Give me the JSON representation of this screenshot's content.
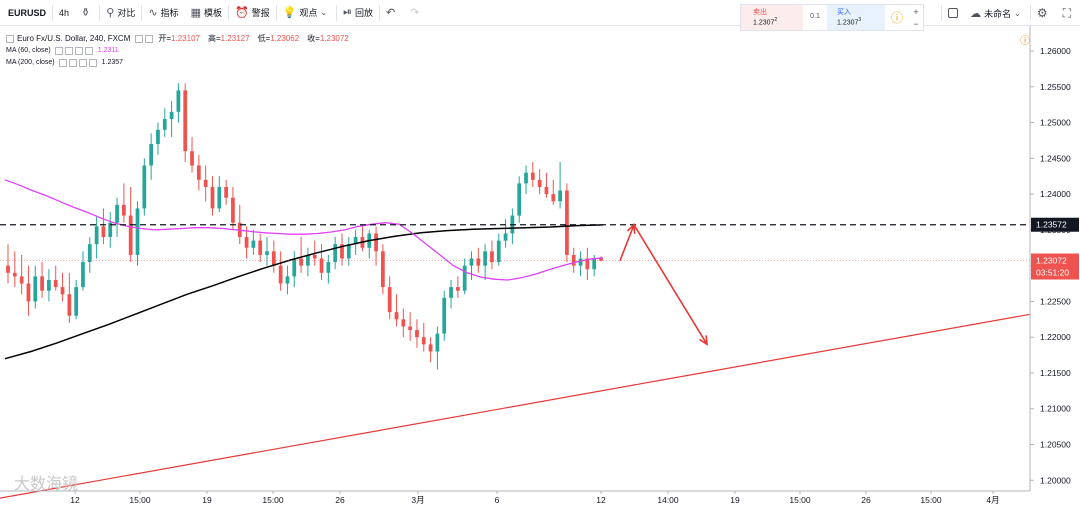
{
  "toolbar": {
    "symbol": "EURUSD",
    "interval": "4h",
    "items": [
      {
        "icon": "candles-icon",
        "label": ""
      },
      {
        "icon": "compare-icon",
        "label": "对比"
      },
      {
        "icon": "indicators-icon",
        "label": "指标"
      },
      {
        "icon": "templates-icon",
        "label": "模板"
      },
      {
        "icon": "alert-icon",
        "label": "警报"
      },
      {
        "icon": "ideas-icon",
        "label": "观点"
      },
      {
        "icon": "replay-icon",
        "label": "回放"
      }
    ],
    "undo_icon": "undo-icon",
    "redo_icon": "redo-icon",
    "layout_name": "未命名",
    "settings_icon": "gear-icon",
    "fullscreen_icon": "fullscreen-icon"
  },
  "trade": {
    "sell_label": "卖出",
    "sell_price": "1.2307",
    "sell_sup": "2",
    "spread": "0.1",
    "buy_label": "买入",
    "buy_price": "1.2307",
    "buy_sup": "3"
  },
  "legend": {
    "title": "Euro Fx/U.S. Dollar, 240, FXCM",
    "open_label": "开=",
    "open": "1.23107",
    "high_label": "高=",
    "high": "1.23127",
    "low_label": "低=",
    "low": "1.23062",
    "close_label": "收=",
    "close": "1.23072",
    "ma60_label": "MA (60, close)",
    "ma60_value": "1.2311",
    "ma200_label": "MA (200, close)",
    "ma200_value": "1.2357"
  },
  "watermark": "大数海镜",
  "colors": {
    "up": "#26a69a",
    "down": "#ef5350",
    "ma60": "#e040fb",
    "ma200": "#000000",
    "trendline": "#e53935",
    "dashed": "#131722"
  },
  "chart_data": {
    "type": "candlestick",
    "title": "Euro Fx/U.S. Dollar, 240, FXCM",
    "ylim": [
      1.1985,
      1.2635
    ],
    "y_ticks": [
      "1.26000",
      "1.25500",
      "1.25000",
      "1.24500",
      "1.24000",
      "1.23500",
      "1.23000",
      "1.22500",
      "1.22000",
      "1.21500",
      "1.21000",
      "1.20500",
      "1.20000"
    ],
    "x_ticks": [
      "12",
      "15:00",
      "19",
      "15:00",
      "26",
      "3月",
      "6",
      "12",
      "14:00",
      "19",
      "15:00",
      "26",
      "15:00",
      "4月"
    ],
    "price_labels": {
      "dashed_level": "1.23572",
      "current": "1.23072",
      "countdown": "03:51:20"
    },
    "horizontal_level": 1.23572,
    "current_price": 1.23072,
    "ohlc": [
      [
        1.23,
        1.233,
        1.2275,
        1.229
      ],
      [
        1.229,
        1.232,
        1.227,
        1.2285
      ],
      [
        1.2285,
        1.2315,
        1.226,
        1.2275
      ],
      [
        1.2275,
        1.23,
        1.223,
        1.225
      ],
      [
        1.225,
        1.23,
        1.224,
        1.2285
      ],
      [
        1.2285,
        1.2305,
        1.2255,
        1.2265
      ],
      [
        1.2265,
        1.2295,
        1.225,
        1.228
      ],
      [
        1.228,
        1.23,
        1.2265,
        1.227
      ],
      [
        1.227,
        1.229,
        1.225,
        1.226
      ],
      [
        1.226,
        1.229,
        1.222,
        1.223
      ],
      [
        1.223,
        1.228,
        1.2225,
        1.227
      ],
      [
        1.227,
        1.232,
        1.2265,
        1.2305
      ],
      [
        1.2305,
        1.234,
        1.229,
        1.233
      ],
      [
        1.233,
        1.237,
        1.231,
        1.2355
      ],
      [
        1.2355,
        1.238,
        1.233,
        1.234
      ],
      [
        1.234,
        1.2375,
        1.2325,
        1.236
      ],
      [
        1.236,
        1.2395,
        1.234,
        1.2385
      ],
      [
        1.2385,
        1.2415,
        1.236,
        1.237
      ],
      [
        1.237,
        1.241,
        1.2305,
        1.2315
      ],
      [
        1.2315,
        1.239,
        1.23,
        1.238
      ],
      [
        1.238,
        1.245,
        1.237,
        1.244
      ],
      [
        1.244,
        1.2485,
        1.242,
        1.247
      ],
      [
        1.247,
        1.25,
        1.2455,
        1.249
      ],
      [
        1.249,
        1.252,
        1.248,
        1.2505
      ],
      [
        1.2505,
        1.253,
        1.248,
        1.2515
      ],
      [
        1.2515,
        1.2555,
        1.25,
        1.2545
      ],
      [
        1.2545,
        1.2555,
        1.2445,
        1.246
      ],
      [
        1.246,
        1.248,
        1.243,
        1.244
      ],
      [
        1.244,
        1.2455,
        1.2405,
        1.242
      ],
      [
        1.242,
        1.244,
        1.239,
        1.241
      ],
      [
        1.241,
        1.2425,
        1.237,
        1.238
      ],
      [
        1.238,
        1.2425,
        1.2375,
        1.241
      ],
      [
        1.241,
        1.242,
        1.2385,
        1.2395
      ],
      [
        1.2395,
        1.241,
        1.235,
        1.236
      ],
      [
        1.236,
        1.2385,
        1.233,
        1.234
      ],
      [
        1.234,
        1.2355,
        1.231,
        1.2325
      ],
      [
        1.2325,
        1.235,
        1.2315,
        1.2335
      ],
      [
        1.2335,
        1.2345,
        1.2305,
        1.2315
      ],
      [
        1.2315,
        1.234,
        1.23,
        1.232
      ],
      [
        1.232,
        1.2335,
        1.229,
        1.23
      ],
      [
        1.23,
        1.232,
        1.2265,
        1.2275
      ],
      [
        1.2275,
        1.23,
        1.226,
        1.2285
      ],
      [
        1.2285,
        1.232,
        1.227,
        1.231
      ],
      [
        1.231,
        1.234,
        1.229,
        1.23
      ],
      [
        1.23,
        1.2325,
        1.2285,
        1.2315
      ],
      [
        1.2315,
        1.2335,
        1.23,
        1.231
      ],
      [
        1.231,
        1.233,
        1.228,
        1.229
      ],
      [
        1.229,
        1.2315,
        1.2275,
        1.2305
      ],
      [
        1.2305,
        1.234,
        1.2295,
        1.233
      ],
      [
        1.233,
        1.2345,
        1.23,
        1.231
      ],
      [
        1.231,
        1.234,
        1.23,
        1.233
      ],
      [
        1.233,
        1.235,
        1.2315,
        1.234
      ],
      [
        1.234,
        1.2355,
        1.232,
        1.2325
      ],
      [
        1.2325,
        1.235,
        1.231,
        1.2345
      ],
      [
        1.2345,
        1.2355,
        1.23,
        1.232
      ],
      [
        1.232,
        1.233,
        1.226,
        1.227
      ],
      [
        1.227,
        1.2285,
        1.2225,
        1.2235
      ],
      [
        1.2235,
        1.226,
        1.2215,
        1.2225
      ],
      [
        1.2225,
        1.224,
        1.22,
        1.2215
      ],
      [
        1.2215,
        1.2235,
        1.2195,
        1.221
      ],
      [
        1.221,
        1.2225,
        1.2185,
        1.22
      ],
      [
        1.22,
        1.222,
        1.218,
        1.219
      ],
      [
        1.219,
        1.22,
        1.2165,
        1.218
      ],
      [
        1.218,
        1.2215,
        1.2155,
        1.2205
      ],
      [
        1.2205,
        1.2265,
        1.2195,
        1.2255
      ],
      [
        1.2255,
        1.228,
        1.224,
        1.227
      ],
      [
        1.227,
        1.2285,
        1.2255,
        1.2265
      ],
      [
        1.2265,
        1.231,
        1.226,
        1.23
      ],
      [
        1.23,
        1.232,
        1.228,
        1.231
      ],
      [
        1.231,
        1.2325,
        1.229,
        1.23
      ],
      [
        1.23,
        1.233,
        1.228,
        1.232
      ],
      [
        1.232,
        1.2335,
        1.2295,
        1.2305
      ],
      [
        1.2305,
        1.2345,
        1.23,
        1.2335
      ],
      [
        1.2335,
        1.2365,
        1.2325,
        1.2345
      ],
      [
        1.2345,
        1.238,
        1.233,
        1.237
      ],
      [
        1.237,
        1.2425,
        1.236,
        1.2415
      ],
      [
        1.2415,
        1.244,
        1.24,
        1.243
      ],
      [
        1.243,
        1.2445,
        1.241,
        1.242
      ],
      [
        1.242,
        1.2435,
        1.24,
        1.241
      ],
      [
        1.241,
        1.243,
        1.2395,
        1.24
      ],
      [
        1.24,
        1.242,
        1.2385,
        1.239
      ],
      [
        1.239,
        1.2445,
        1.238,
        1.2405
      ],
      [
        1.2405,
        1.2415,
        1.2305,
        1.2315
      ],
      [
        1.2315,
        1.2325,
        1.229,
        1.23
      ],
      [
        1.23,
        1.232,
        1.2285,
        1.231
      ],
      [
        1.231,
        1.2325,
        1.228,
        1.2295
      ],
      [
        1.2295,
        1.2315,
        1.2285,
        1.231
      ],
      [
        1.231,
        1.2313,
        1.2306,
        1.2307
      ]
    ],
    "ma60": [
      1.242,
      1.2413,
      1.2405,
      1.2398,
      1.239,
      1.2382,
      1.2375,
      1.2367,
      1.236,
      1.2355,
      1.2352,
      1.235,
      1.2351,
      1.2352,
      1.2353,
      1.2353,
      1.2352,
      1.235,
      1.2348,
      1.2346,
      1.2345,
      1.2344,
      1.2344,
      1.2345,
      1.2347,
      1.235,
      1.2355,
      1.2358,
      1.236,
      1.2358,
      1.2345,
      1.233,
      1.2315,
      1.23,
      1.229,
      1.2284,
      1.2281,
      1.228,
      1.2283,
      1.2288,
      1.2294,
      1.23,
      1.2305,
      1.2309,
      1.2311
    ],
    "ma200": [
      1.217,
      1.218,
      1.2192,
      1.2205,
      1.2218,
      1.2232,
      1.2246,
      1.226,
      1.2272,
      1.2285,
      1.2297,
      1.2308,
      1.2318,
      1.2327,
      1.2335,
      1.2341,
      1.2346,
      1.2349,
      1.2351,
      1.2352,
      1.2353,
      1.2354,
      1.2356,
      1.2357
    ],
    "trendline": [
      [
        0,
        1.1975
      ],
      [
        1,
        1.2232
      ]
    ],
    "arrow_path": [
      [
        0,
        1.2307
      ],
      [
        1,
        1.2357
      ],
      [
        2,
        1.219
      ]
    ]
  }
}
